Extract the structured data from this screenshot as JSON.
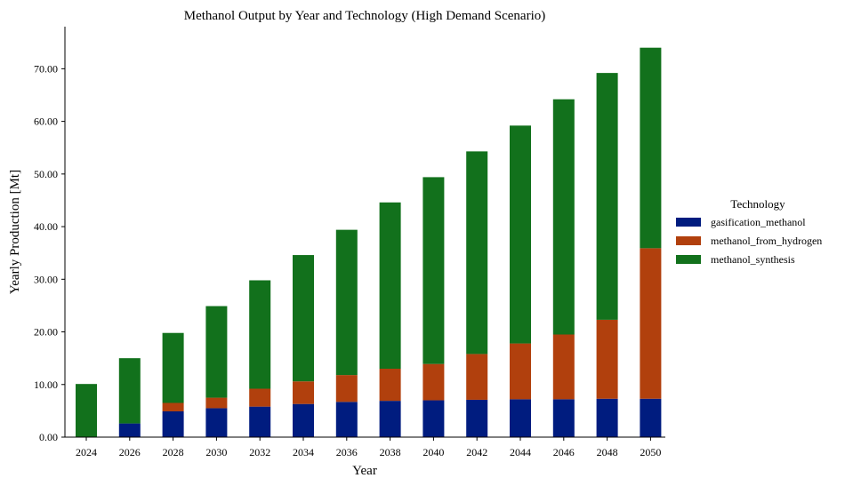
{
  "chart_data": {
    "type": "bar",
    "stacked": true,
    "title": "Methanol Output by Year and Technology (High Demand Scenario)",
    "xlabel": "Year",
    "ylabel": "Yearly Production [Mt]",
    "ylim": [
      0,
      78
    ],
    "yticks": [
      "0.00",
      "10.00",
      "20.00",
      "30.00",
      "40.00",
      "50.00",
      "60.00",
      "70.00"
    ],
    "categories": [
      "2024",
      "2026",
      "2028",
      "2030",
      "2032",
      "2034",
      "2036",
      "2038",
      "2040",
      "2042",
      "2044",
      "2046",
      "2048",
      "2050"
    ],
    "legend_title": "Technology",
    "legend_position": "right",
    "series": [
      {
        "name": "gasification_methanol",
        "color": "#001c7f",
        "values": [
          0.0,
          2.6,
          4.9,
          5.5,
          5.8,
          6.3,
          6.7,
          6.9,
          7.0,
          7.1,
          7.2,
          7.2,
          7.3,
          7.3
        ]
      },
      {
        "name": "methanol_from_hydrogen",
        "color": "#b1400d",
        "values": [
          0.0,
          0.0,
          1.6,
          2.0,
          3.4,
          4.3,
          5.1,
          6.1,
          6.9,
          8.7,
          10.6,
          12.3,
          15.0,
          28.6
        ]
      },
      {
        "name": "methanol_synthesis",
        "color": "#12711c",
        "values": [
          10.1,
          12.4,
          13.3,
          17.4,
          20.6,
          24.0,
          27.6,
          31.6,
          35.5,
          38.5,
          41.4,
          44.7,
          46.9,
          38.1
        ]
      }
    ]
  }
}
